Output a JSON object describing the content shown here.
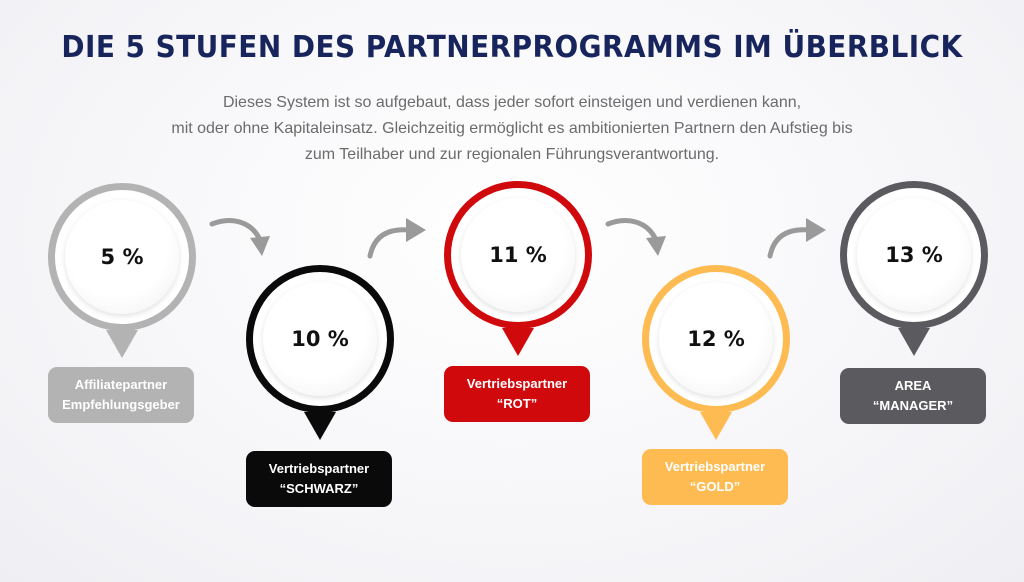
{
  "title": "DIE 5 STUFEN DES PARTNERPROGRAMMS IM ÜBERBLICK",
  "subtitle": [
    "Dieses System ist so aufgebaut, dass jeder sofort einsteigen und verdienen kann,",
    "mit oder ohne Kapitaleinsatz. Gleichzeitig ermöglicht es ambitionierten Partnern den Aufstieg bis",
    "zum Teilhaber und zur regionalen Führungsverantwortung."
  ],
  "stages": [
    {
      "percent": "5 %",
      "label_line1": "Affiliatepartner",
      "label_line2": "Empfehlungsgeber",
      "color": "#b3b3b3"
    },
    {
      "percent": "10 %",
      "label_line1": "Vertriebspartner",
      "label_line2": "“SCHWARZ”",
      "color": "#0a0a0a"
    },
    {
      "percent": "11 %",
      "label_line1": "Vertriebspartner",
      "label_line2": "“ROT”",
      "color": "#d0090d"
    },
    {
      "percent": "12 %",
      "label_line1": "Vertriebspartner",
      "label_line2": "“GOLD”",
      "color": "#fdbb52"
    },
    {
      "percent": "13 %",
      "label_line1": "AREA",
      "label_line2": "“MANAGER”",
      "color": "#5b5b5f"
    }
  ],
  "arrows": [
    {
      "icon": "curved-arrow-down-right-icon"
    },
    {
      "icon": "curved-arrow-up-right-icon"
    },
    {
      "icon": "curved-arrow-down-right-icon"
    },
    {
      "icon": "curved-arrow-up-right-icon"
    }
  ],
  "arrow_color": "#9a9a9a"
}
